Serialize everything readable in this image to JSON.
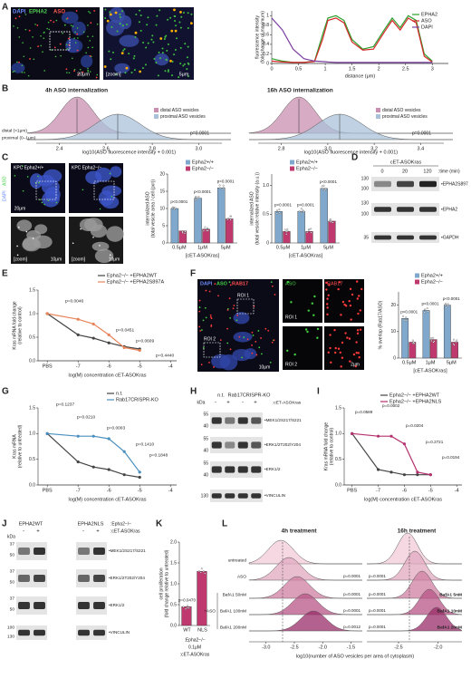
{
  "panel_a": {
    "letter": "A",
    "channels": [
      "DAPI",
      "EPHA2",
      "ASO"
    ],
    "scale": "20μm",
    "zoom": "[zoom]",
    "zoom_scale": "5μm",
    "plot": {
      "type": "line",
      "xlabel": "distance (μm)",
      "ylabel": [
        "fluorescence intensity",
        "(fold change of maximum)"
      ],
      "legend": "upper right",
      "x": [
        0,
        0.2,
        0.4,
        0.6,
        0.8,
        0.95,
        1.05,
        1.2,
        1.35,
        1.5,
        1.7,
        1.9,
        2.1,
        2.25,
        2.4,
        2.55,
        2.7,
        2.85,
        3.0
      ],
      "xlim": [
        0,
        3.3
      ],
      "ylim": [
        0,
        1.1
      ],
      "xticks": [
        0,
        0.5,
        1,
        1.5,
        2,
        2.5,
        3
      ],
      "yticks": [
        0,
        0.2,
        0.4,
        0.6,
        0.8,
        1
      ],
      "series": [
        {
          "name": "EPHA2",
          "color": "#2ca02c",
          "values": [
            0.1,
            0.05,
            0.02,
            0.02,
            0.05,
            0.6,
            0.95,
            1.0,
            0.9,
            0.5,
            0.3,
            0.35,
            0.7,
            0.95,
            0.75,
            1.0,
            0.9,
            0.2,
            0.05
          ]
        },
        {
          "name": "ASO",
          "color": "#d62728",
          "values": [
            0.05,
            0.03,
            0.02,
            0.02,
            0.04,
            0.5,
            0.9,
            0.95,
            0.85,
            0.45,
            0.28,
            0.3,
            0.65,
            0.9,
            0.7,
            0.95,
            0.85,
            0.15,
            0.03
          ]
        },
        {
          "name": "DAPI",
          "color": "#7b3fa0",
          "values": [
            0.95,
            0.7,
            0.3,
            0.1,
            0.05,
            0.04,
            0.03,
            0.02,
            0.02,
            0.02,
            0.02,
            0.02,
            0.02,
            0.02,
            0.02,
            0.02,
            0.02,
            0.02,
            0.02
          ]
        }
      ]
    }
  },
  "panel_b": {
    "letter": "B",
    "legend": [
      "distal ASO vesicles",
      "proximal ASO vesicles"
    ],
    "rows": [
      "distal (>1μm)",
      "proximal (0–1μm)"
    ],
    "plots": [
      {
        "title": "4h ASO internalization",
        "p": "p=0.0001",
        "xlabel": "log10(ASO fluorescence intensity + 0.001)",
        "xlim": [
          2.3,
          3.1
        ],
        "xticks": [
          2.4,
          2.6,
          2.8,
          {
            "value": 3,
            "label": "3.0"
          }
        ]
      },
      {
        "title": "16h ASO internalization",
        "p": "p=0.0001",
        "xlabel": "log10(ASO fluorescence intensity + 0.001)",
        "xlim": [
          2.7,
          3.5
        ],
        "xticks": [
          2.8,
          {
            "value": 3,
            "label": "3.0"
          },
          3.2,
          3.4
        ]
      }
    ]
  },
  "panel_c": {
    "letter": "C",
    "images": [
      "KPC Epha2+/+",
      "KPC Epha2−/−"
    ],
    "channels": [
      "DAPI",
      "ASO"
    ],
    "scale": "20μm",
    "zoom": "[zoom]",
    "zoom_scale": "10μm",
    "plots": [
      {
        "type": "bar",
        "legend": "top",
        "ylabel": [
          "internalized ASO",
          "(total vesicle area / cell (px²))"
        ],
        "xlabel": "[cET-ASOKras]",
        "categories": [
          "0.5μM",
          "1μM",
          "5μM"
        ],
        "ylim": [
          0,
          20
        ],
        "yticks": [
          0,
          5,
          10,
          15,
          20
        ],
        "series": [
          {
            "name": "Epha2+/+",
            "color": "#7fa8cc",
            "values": [
              10,
              13,
              16
            ]
          },
          {
            "name": "Epha2−/−",
            "color": "#c0396e",
            "values": [
              3.5,
              4,
              7
            ]
          }
        ],
        "annotations": [
          "p<0.0001",
          "p<0.0001",
          "p<0.0001"
        ]
      },
      {
        "type": "bar",
        "legend": "top",
        "ylabel": [
          "internalized ASO",
          "(total vesicle relative intensity (a.u.))"
        ],
        "xlabel": "[cET-ASOKras]",
        "categories": [
          "0.5μM",
          "1μM",
          "5μM"
        ],
        "ylim": [
          0,
          1.2
        ],
        "yticks": [
          0,
          0.5,
          {
            "value": 1,
            "label": "1.0"
          }
        ],
        "series": [
          {
            "name": "Epha2+/+",
            "color": "#7fa8cc",
            "values": [
              0.55,
              0.55,
              0.95
            ]
          },
          {
            "name": "Epha2−/−",
            "color": "#c0396e",
            "values": [
              0.2,
              0.2,
              0.38
            ]
          }
        ],
        "annotations": [
          "p<0.0001",
          "p<0.0001",
          "p<0.0001"
        ]
      }
    ]
  },
  "panel_d": {
    "letter": "D",
    "treatment": "cET-ASOKras",
    "times": [
      "0",
      "20",
      "120"
    ],
    "time_label": ":time (min)",
    "kda": [
      "130",
      "100",
      "130",
      "100",
      "35"
    ],
    "bands": [
      "•EPHA2S897",
      "•EPHA2",
      "•GAPDH"
    ]
  },
  "panel_e": {
    "letter": "E",
    "plot": {
      "type": "line",
      "markers": true,
      "legend": "top",
      "ylabel": [
        "Kras mRNA fold change",
        "(relative to control)"
      ],
      "xlabel": "log(M) concentration cET-ASOKras",
      "x": [
        -8,
        -7,
        -6.5,
        -6,
        -5.5,
        -5
      ],
      "xlim": [
        -8.3,
        -3.8
      ],
      "ylim": [
        0,
        1.5
      ],
      "xticks": [
        {
          "value": -8,
          "label": "PBS"
        },
        -7,
        -6,
        -5,
        -4
      ],
      "yticks": [
        {
          "value": 0,
          "label": "0.0"
        },
        0.5,
        {
          "value": 1,
          "label": "1.0"
        },
        1.5
      ],
      "series": [
        {
          "name": "Epha2−/− +EPHA2WT",
          "color": "#444444",
          "values": [
            1.0,
            0.55,
            0.48,
            0.38,
            0.3,
            0.25
          ]
        },
        {
          "name": "Epha2−/− +EPHA2S897A",
          "color": "#e8845a",
          "values": [
            1.0,
            0.88,
            0.78,
            0.55,
            0.28,
            0.22
          ]
        }
      ],
      "annotations": [
        "p=0.0046",
        "p=0.0451",
        "p=0.0609",
        "p=0.4440"
      ]
    }
  },
  "panel_f": {
    "letter": "F",
    "channels": [
      "DAPI",
      "ASO",
      "RAB17"
    ],
    "rois": [
      "ROI 1",
      "ROI 2"
    ],
    "crop_channels": [
      "ASO",
      "RAB17"
    ],
    "crop_rois": [
      "ROI 1",
      "ROI 2"
    ],
    "scale": "10μm",
    "crop_scale": "2μm",
    "plot": {
      "type": "bar",
      "legend": "top",
      "ylabel": "% overlap (Rab17/ASO)",
      "xlabel": "[cET-ASOKras]",
      "categories": [
        "0.5μM",
        "1μM",
        "5μM"
      ],
      "ylim": [
        0,
        25
      ],
      "yticks": [
        0,
        10,
        20
      ],
      "series": [
        {
          "name": "Epha2+/+",
          "color": "#7fa8cc",
          "values": [
            15,
            18,
            20
          ]
        },
        {
          "name": "Epha2−/−",
          "color": "#c0396e",
          "values": [
            6,
            7,
            6
          ]
        }
      ],
      "annotations": [
        "p<0.0001",
        "p<0.0001",
        "p<0.0001"
      ]
    }
  },
  "panel_g": {
    "letter": "G",
    "plot": {
      "type": "line",
      "markers": true,
      "legend": "top",
      "ylabel": [
        "Kras mRNA",
        "(relative to untreated)"
      ],
      "xlabel": "log(M) concentration cET-ASOKras",
      "x": [
        -8,
        -7,
        -6.5,
        -6,
        -5.5,
        -5
      ],
      "xlim": [
        -8.3,
        -3.8
      ],
      "ylim": [
        0,
        1.5
      ],
      "xticks": [
        {
          "value": -8,
          "label": "PBS"
        },
        -7,
        -6,
        -5,
        -4
      ],
      "yticks": [
        {
          "value": 0,
          "label": "0.0"
        },
        0.5,
        {
          "value": 1,
          "label": "1.0"
        },
        1.5
      ],
      "series": [
        {
          "name": "n.t.",
          "color": "#444444",
          "values": [
            1.0,
            0.45,
            0.35,
            0.3,
            0.2,
            0.15
          ]
        },
        {
          "name": "Rab17CRISPR-KO",
          "color": "#4a8fbf",
          "values": [
            1.0,
            0.95,
            0.95,
            0.9,
            0.65,
            0.25
          ]
        }
      ],
      "annotations": [
        "p=0.1237",
        "p=0.0210",
        "p=0.0003",
        "p=0.1410",
        "p=0.1848"
      ]
    }
  },
  "panel_h": {
    "letter": "H",
    "groups": [
      "n.t.",
      "Rab17CRISPR-KO"
    ],
    "treatment": ":cET-ASOKras",
    "lanes": [
      "-",
      "+",
      "-",
      "+"
    ],
    "kda_label": "kDa",
    "kda": [
      "55",
      "40",
      "55",
      "40",
      "55",
      "40",
      "130"
    ],
    "bands": [
      "•MEK1/2S217/S221",
      "•ERK1/2T202/Y204",
      "•ERK1/2",
      "•VINCULIN"
    ]
  },
  "panel_i": {
    "letter": "I",
    "plot": {
      "type": "line",
      "markers": true,
      "legend": "top",
      "ylabel": [
        "Kras mRNA fold change",
        "(relative to control)"
      ],
      "xlabel": "log(M) concentration cET-ASOKras",
      "x": [
        -8,
        -7,
        -6.5,
        -6,
        -5.5,
        -5
      ],
      "xlim": [
        -8.3,
        -3.8
      ],
      "ylim": [
        0,
        1.5
      ],
      "xticks": [
        {
          "value": -8,
          "label": "PBS"
        },
        -7,
        -6,
        -5,
        -4
      ],
      "yticks": [
        {
          "value": 0,
          "label": "0.0"
        },
        0.5,
        {
          "value": 1,
          "label": "1.0"
        },
        1.5
      ],
      "series": [
        {
          "name": "Epha2−/− +EPHA2WT",
          "color": "#444444",
          "values": [
            1.0,
            0.3,
            0.25,
            0.2,
            0.2,
            0.2
          ]
        },
        {
          "name": "Epha2−/− +EPHA2NLS",
          "color": "#b5306e",
          "values": [
            1.0,
            0.95,
            0.95,
            0.8,
            0.25,
            0.2
          ]
        }
      ],
      "annotations": [
        "p=0.0589",
        "p=0.0002",
        "p=0.0204",
        "p=0.2721",
        "p=0.0194"
      ]
    }
  },
  "panel_j": {
    "letter": "J",
    "groups": [
      "EPHA2WT",
      "EPHA2NLS"
    ],
    "genotype": ":Epha2−/−",
    "treatment": ":cET-ASOKras",
    "lanes": [
      "-",
      "+",
      "-",
      "+"
    ],
    "kda_label": "kDa",
    "kda": [
      "37",
      "50",
      "37",
      "50",
      "37",
      "50",
      "100",
      "130"
    ],
    "bands": [
      "•MEK1/2S217/S221",
      "•ERK1/2T202/Y204",
      "•ERK1/2",
      "•VINCULIN"
    ]
  },
  "panel_k": {
    "letter": "K",
    "genotype": ":Epha2−/−",
    "dose": "0.1μM",
    "treatment": ":cET-ASOKras",
    "plot": {
      "type": "bar",
      "ylabel": [
        "cell proliferation",
        "(fold change relative to untreated)"
      ],
      "categories": [
        "WT",
        "NLS"
      ],
      "values": [
        0.45,
        1.3
      ],
      "color": "#c0396e",
      "ylim": [
        0,
        2
      ],
      "yticks": [
        {
          "value": 0,
          "label": "0.0"
        },
        0.5,
        {
          "value": 1,
          "label": "1.0"
        },
        1.5,
        {
          "value": 2,
          "label": "2.0"
        }
      ],
      "annotations": [
        "p=0.0470"
      ]
    }
  },
  "panel_l": {
    "letter": "L",
    "titles": [
      "4h treatment",
      "16h treatment"
    ],
    "rows": [
      "untreated",
      "ASO",
      "BafA1 50nM",
      "BafA1 100nM",
      "BafA1 200nM"
    ],
    "group": "+ASO",
    "right_rows": [
      "BafA1 5nM",
      "BafA1 10nM",
      "BafA1 20nM"
    ],
    "p_left": [
      "p=0.0001",
      "p=0.0001",
      "p=0.0001",
      "p=0.0012"
    ],
    "p_right": [
      "p=0.0001",
      "p=0.0001",
      "p=0.0001",
      "p=0.0001"
    ],
    "xlabel": "log10(number of ASO vesicles per area of cytoplasm)",
    "axes": [
      {
        "xlim": [
          -3.3,
          -1.3
        ],
        "xticks": [
          {
            "value": -3,
            "label": "-3.0"
          },
          -2.5,
          {
            "value": -2,
            "label": "-2.0"
          },
          -1.5
        ]
      },
      {
        "xlim": [
          -2.9,
          -1.7
        ],
        "xticks": [
          -2.5,
          {
            "value": -2,
            "label": "-2.0"
          }
        ]
      }
    ]
  }
}
